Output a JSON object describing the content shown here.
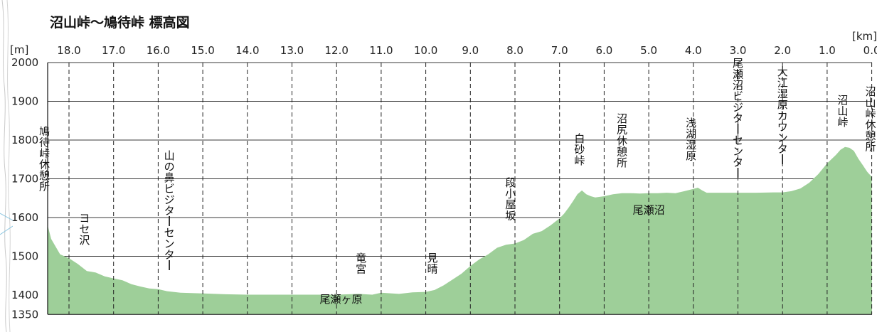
{
  "title": "沼山峠～鳩待峠 標高図",
  "chart_data": {
    "type": "area",
    "title": "沼山峠～鳩待峠 標高図",
    "xlabel": "",
    "ylabel": "",
    "x_unit": "[km]",
    "y_unit": "[m]",
    "xlim": [
      18.5,
      0.0
    ],
    "ylim": [
      1350,
      2000
    ],
    "x_direction": "reversed",
    "x_ticks": [
      "18.0",
      "17.0",
      "16.0",
      "15.0",
      "14.0",
      "13.0",
      "12.0",
      "11.0",
      "10.0",
      "9.0",
      "8.0",
      "7.0",
      "6.0",
      "5.0",
      "4.0",
      "3.0",
      "2.0",
      "1.0",
      "0.0"
    ],
    "y_ticks": [
      "2000",
      "1900",
      "1800",
      "1700",
      "1600",
      "1500",
      "1400",
      "1350"
    ],
    "grid": {
      "horizontal": true,
      "vertical_dashed": true
    },
    "fill_color": "#9ecf99",
    "line_color": "#1a1a1a",
    "profile": {
      "x": [
        18.5,
        18.4,
        18.3,
        18.2,
        18.0,
        17.8,
        17.6,
        17.4,
        17.2,
        17.0,
        16.8,
        16.6,
        16.4,
        16.2,
        16.0,
        15.8,
        15.5,
        15.0,
        14.5,
        14.0,
        13.5,
        13.0,
        12.5,
        12.0,
        11.5,
        11.2,
        11.0,
        10.6,
        10.3,
        10.0,
        9.8,
        9.6,
        9.4,
        9.2,
        9.0,
        8.8,
        8.6,
        8.4,
        8.2,
        8.0,
        7.8,
        7.6,
        7.4,
        7.2,
        7.0,
        6.9,
        6.8,
        6.7,
        6.6,
        6.5,
        6.4,
        6.3,
        6.2,
        6.0,
        5.8,
        5.6,
        5.4,
        5.2,
        5.0,
        4.8,
        4.6,
        4.4,
        4.2,
        4.0,
        3.9,
        3.8,
        3.7,
        3.5,
        3.2,
        3.0,
        2.6,
        2.2,
        2.0,
        1.8,
        1.6,
        1.4,
        1.2,
        1.0,
        0.8,
        0.7,
        0.6,
        0.5,
        0.4,
        0.3,
        0.2,
        0.1,
        0.0
      ],
      "y": [
        1580,
        1545,
        1525,
        1505,
        1495,
        1480,
        1462,
        1458,
        1448,
        1443,
        1438,
        1428,
        1422,
        1417,
        1415,
        1410,
        1406,
        1404,
        1402,
        1401,
        1401,
        1401,
        1401,
        1401,
        1403,
        1401,
        1406,
        1403,
        1407,
        1408,
        1413,
        1425,
        1440,
        1455,
        1475,
        1492,
        1505,
        1522,
        1530,
        1533,
        1542,
        1558,
        1565,
        1580,
        1598,
        1610,
        1625,
        1642,
        1660,
        1670,
        1660,
        1655,
        1652,
        1655,
        1660,
        1663,
        1663,
        1662,
        1663,
        1663,
        1664,
        1663,
        1668,
        1674,
        1677,
        1670,
        1664,
        1664,
        1664,
        1664,
        1664,
        1665,
        1665,
        1668,
        1675,
        1690,
        1712,
        1740,
        1762,
        1775,
        1782,
        1780,
        1772,
        1752,
        1735,
        1718,
        1705
      ]
    },
    "markers": [
      {
        "label": "鳩待峠休憩所",
        "x": 18.55
      },
      {
        "label": "ヨセ沢",
        "x": 17.65
      },
      {
        "label": "山の鼻ビジターセンター",
        "x": 15.75
      },
      {
        "label": "竜宮",
        "x": 11.45
      },
      {
        "label": "見晴",
        "x": 9.85
      },
      {
        "label": "段小屋坂",
        "x": 8.1
      },
      {
        "label": "白砂峠",
        "x": 6.55
      },
      {
        "label": "沼尻休憩所",
        "x": 5.6
      },
      {
        "label": "浅湖湿原",
        "x": 4.05
      },
      {
        "label": "尾瀬沼ビジターセンター",
        "x": 3.0
      },
      {
        "label": "大江湿原カウンター",
        "x": 2.0
      },
      {
        "label": "沼山峠",
        "x": 0.65
      },
      {
        "label": "沼山峠休憩所",
        "x": -0.2
      }
    ],
    "area_labels": [
      {
        "label": "尾瀬ヶ原",
        "x": 11.9,
        "y": 1380
      },
      {
        "label": "尾瀬沼",
        "x": 5.0,
        "y": 1610
      }
    ]
  }
}
